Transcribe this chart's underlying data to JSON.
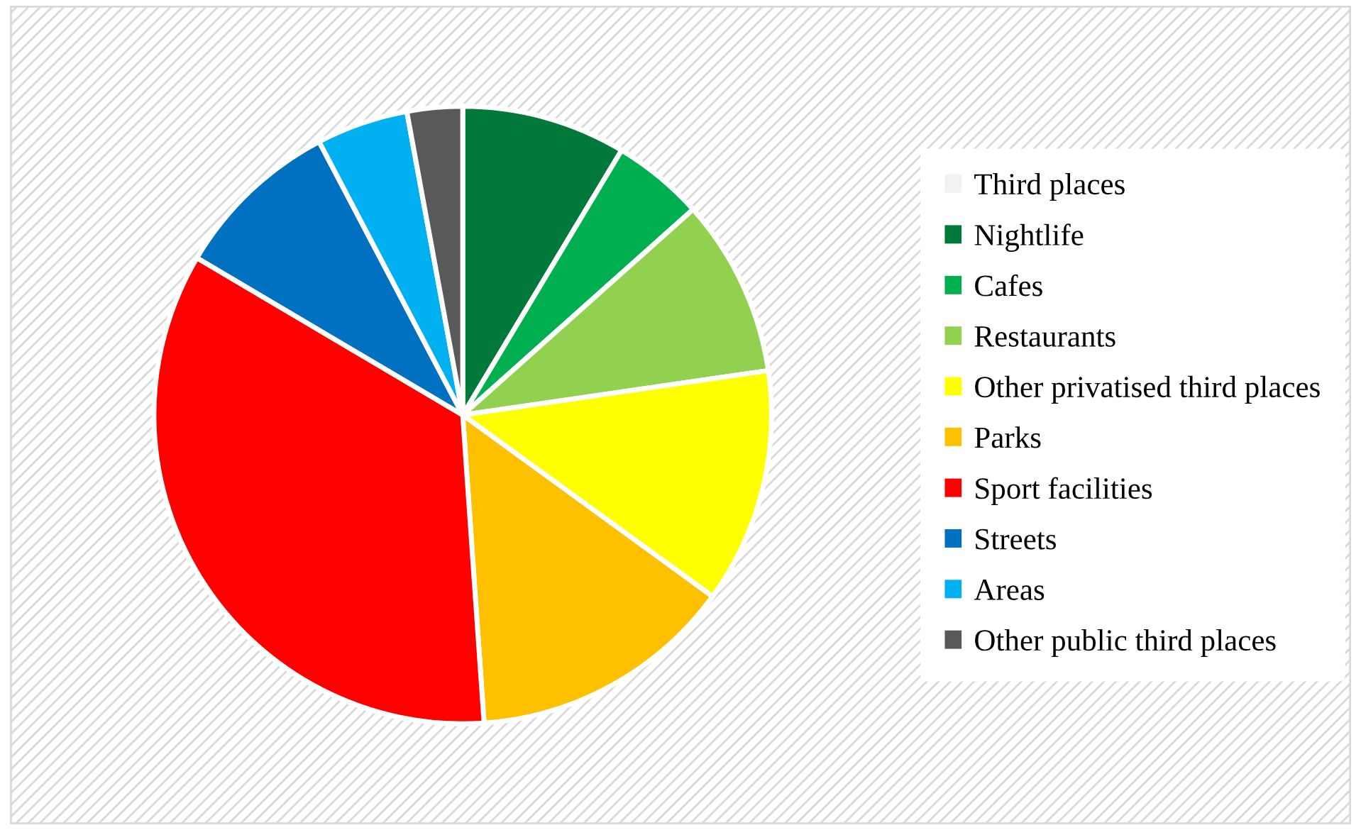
{
  "chart_data": {
    "type": "pie",
    "categories": [
      "Third places",
      "Nightlife",
      "Cafes",
      "Restaurants",
      "Other privatised third places",
      "Parks",
      "Sport facilities",
      "Streets",
      "Areas",
      "Other public third places"
    ],
    "values": [
      0,
      8.6,
      4.8,
      9.3,
      12.3,
      13.9,
      34.6,
      8.8,
      4.8,
      2.9
    ],
    "colors": [
      "#f2f2f2",
      "#00793a",
      "#00b050",
      "#92d050",
      "#ffff00",
      "#ffc000",
      "#ff0000",
      "#0070c0",
      "#00b0f0",
      "#595959"
    ],
    "legend": "right"
  }
}
